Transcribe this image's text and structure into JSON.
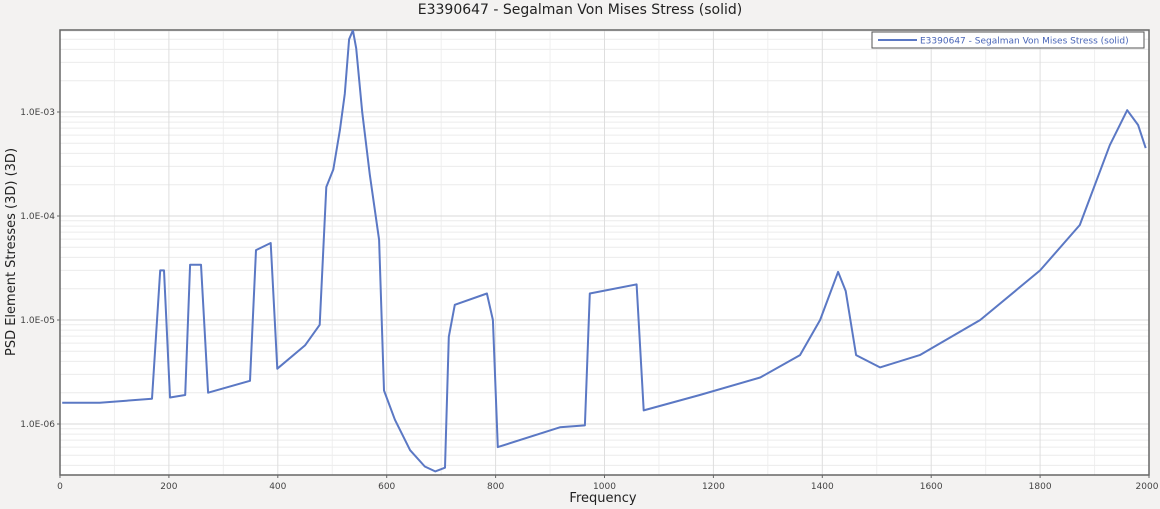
{
  "window": {
    "title": "E3390647 - Segalman Von Mises Stress (solid)"
  },
  "legend": {
    "entries": [
      "E3390647 - Segalman Von Mises Stress (solid)"
    ]
  },
  "axes": {
    "xlabel": "Frequency",
    "ylabel": "PSD Element Stresses (3D) (3D)",
    "x_ticks": [
      "0",
      "200",
      "400",
      "600",
      "800",
      "1000",
      "1200",
      "1400",
      "1600",
      "1800",
      "2000"
    ],
    "y_ticks": [
      "1.0E-03",
      "1.0E-04",
      "1.0E-05",
      "1.0E-06"
    ]
  },
  "colors": {
    "line": "#5b78c4",
    "background": "#f3f2f1",
    "plot_bg": "#ffffff",
    "grid": "#e2e2e2",
    "frame": "#666666"
  },
  "chart_data": {
    "type": "line",
    "title": "E3390647 - Segalman Von Mises Stress (solid)",
    "xlabel": "Frequency",
    "ylabel": "PSD Element Stresses (3D) (3D)",
    "xlim": [
      0,
      2000
    ],
    "ylim": [
      3.2e-07,
      0.006
    ],
    "yscale": "log",
    "grid": true,
    "legend_position": "top-right",
    "x_tick_labels": [
      "0",
      "200",
      "400",
      "600",
      "800",
      "1000",
      "1200",
      "1400",
      "1600",
      "1800",
      "2000"
    ],
    "y_tick_labels": [
      "1.0E-06",
      "1.0E-05",
      "1.0E-04",
      "1.0E-03"
    ],
    "series": [
      {
        "name": "E3390647 - Segalman Von Mises Stress (solid)",
        "x": [
          4,
          73,
          169,
          184,
          191,
          202,
          230,
          239,
          259,
          272,
          349,
          360,
          387,
          399,
          450,
          477,
          489,
          502,
          514,
          523,
          531,
          538,
          544,
          555,
          569,
          586,
          595,
          615,
          643,
          670,
          689,
          707,
          714,
          725,
          784,
          795,
          804,
          918,
          964,
          973,
          1059,
          1072,
          1175,
          1286,
          1359,
          1396,
          1429,
          1443,
          1462,
          1506,
          1579,
          1690,
          1800,
          1873,
          1928,
          1960,
          1980,
          1994
        ],
        "values": [
          1.6e-06,
          1.6e-06,
          1.75e-06,
          3e-05,
          3e-05,
          1.8e-06,
          1.9e-06,
          3.4e-05,
          3.4e-05,
          2e-06,
          2.6e-06,
          4.7e-05,
          5.5e-05,
          3.4e-06,
          5.7e-06,
          9e-06,
          0.00019,
          0.00028,
          0.00067,
          0.0015,
          0.005,
          0.0061,
          0.0041,
          0.001,
          0.00025,
          5.9e-05,
          2.1e-06,
          1.1e-06,
          5.6e-07,
          3.9e-07,
          3.5e-07,
          3.8e-07,
          6.9e-06,
          1.4e-05,
          1.8e-05,
          1e-05,
          6e-07,
          9.3e-07,
          9.7e-07,
          1.8e-05,
          2.2e-05,
          1.35e-06,
          1.9e-06,
          2.8e-06,
          4.6e-06,
          1e-05,
          2.9e-05,
          1.9e-05,
          4.6e-06,
          3.5e-06,
          4.6e-06,
          1e-05,
          3e-05,
          8.2e-05,
          0.00048,
          0.00104,
          0.00075,
          0.00045
        ]
      }
    ]
  }
}
